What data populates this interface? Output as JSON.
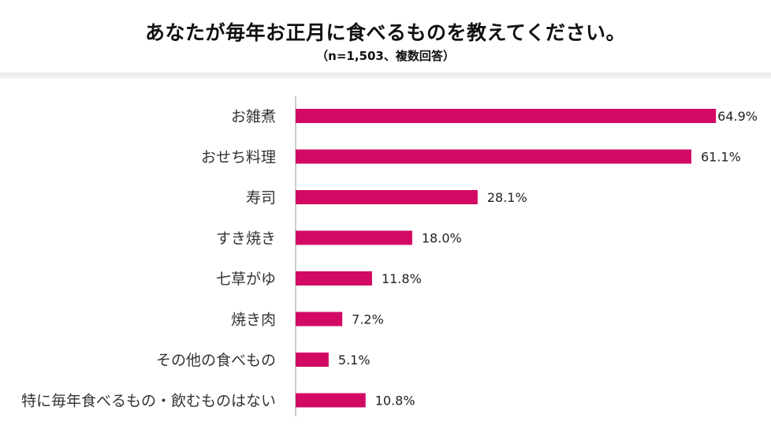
{
  "header": {
    "title": "あなたが毎年お正月に食べるものを教えてください。",
    "subtitle": "（n=1,503、複数回答）"
  },
  "colors": {
    "bar": "#d20a64",
    "axis": "#bbbbbb"
  },
  "chart_data": {
    "type": "bar",
    "orientation": "horizontal",
    "title": "あなたが毎年お正月に食べるものを教えてください。",
    "subtitle": "（n=1,503、複数回答）",
    "categories": [
      "お雑煮",
      "おせち料理",
      "寿司",
      "すき焼き",
      "七草がゆ",
      "焼き肉",
      "その他の食べもの",
      "特に毎年食べるもの・飲むものはない"
    ],
    "values": [
      64.9,
      61.1,
      28.1,
      18.0,
      11.8,
      7.2,
      5.1,
      10.8
    ],
    "value_labels": [
      "64.9%",
      "61.1%",
      "28.1%",
      "18.0%",
      "11.8%",
      "7.2%",
      "5.1%",
      "10.8%"
    ],
    "unit": "%",
    "xlim": [
      0,
      65
    ],
    "grid": false,
    "legend": "none"
  }
}
